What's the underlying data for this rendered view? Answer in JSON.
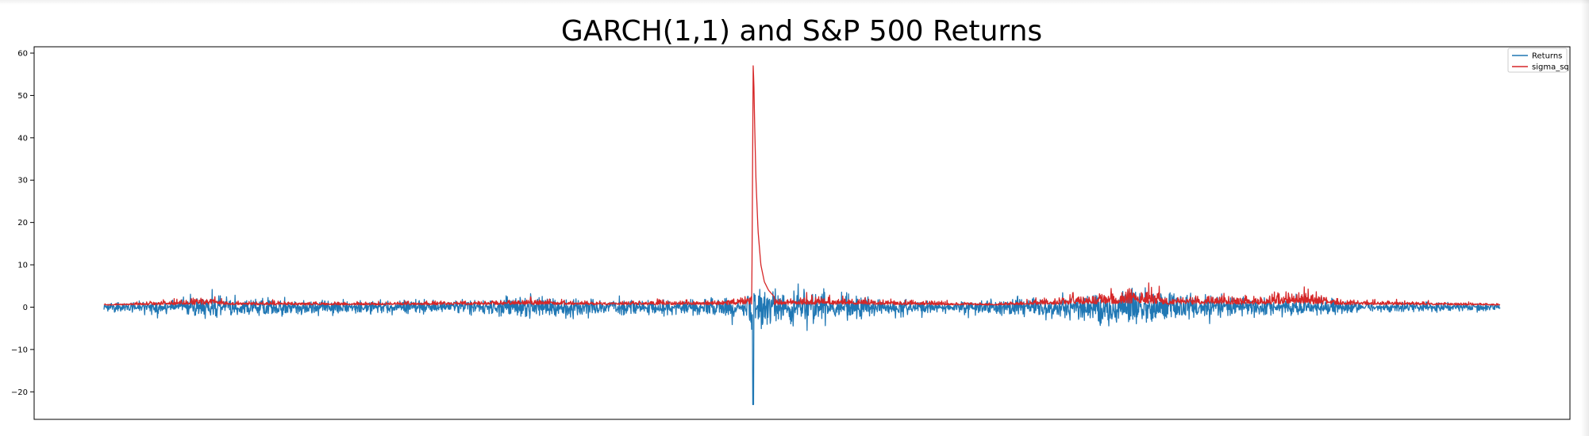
{
  "chart_data": {
    "type": "line",
    "title": "GARCH(1,1) and S&P 500 Returns",
    "xlabel": "",
    "ylabel": "",
    "ylim": [
      -26.5,
      61.5
    ],
    "yticks": [
      -20,
      -10,
      0,
      10,
      20,
      30,
      40,
      50,
      60
    ],
    "ytick_labels": [
      "−20",
      "−10",
      "0",
      "10",
      "20",
      "30",
      "40",
      "50",
      "60"
    ],
    "grid": false,
    "legend_position": "top-right",
    "series": [
      {
        "name": "Returns",
        "color": "#1f77b4",
        "features": [
          [
            0.0,
            0.6
          ],
          [
            0.05,
            2.2
          ],
          [
            0.08,
            3.4
          ],
          [
            0.18,
            1.8
          ],
          [
            0.205,
            2.4
          ],
          [
            0.255,
            1.6
          ],
          [
            0.31,
            4.5
          ],
          [
            0.33,
            2.8
          ],
          [
            0.4,
            1.9
          ],
          [
            0.43,
            3.0
          ],
          [
            0.45,
            4.5
          ],
          [
            0.465,
            -10.0
          ],
          [
            0.468,
            -6.0
          ],
          [
            0.472,
            -8.2
          ],
          [
            0.502,
            -6.5
          ],
          [
            0.555,
            -3.0
          ],
          [
            0.61,
            -1.5
          ],
          [
            0.73,
            -6.5
          ],
          [
            0.755,
            -6.8
          ],
          [
            0.8,
            -3.5
          ],
          [
            0.83,
            -2.5
          ],
          [
            0.86,
            -3.8
          ],
          [
            0.87,
            -2.7
          ],
          [
            0.895,
            -1.5
          ],
          [
            1.0,
            -0.5
          ]
        ],
        "extreme": {
          "x": 0.465,
          "y": -23.0
        }
      },
      {
        "name": "sigma_sq",
        "color": "#d62728",
        "features": [
          [
            0.0,
            0.5
          ],
          [
            0.055,
            3.0
          ],
          [
            0.08,
            5.0
          ],
          [
            0.09,
            2.0
          ],
          [
            0.19,
            1.5
          ],
          [
            0.32,
            3.5
          ],
          [
            0.34,
            2.0
          ],
          [
            0.45,
            3.0
          ],
          [
            0.475,
            7.0
          ],
          [
            0.48,
            3.0
          ],
          [
            0.505,
            4.5
          ],
          [
            0.55,
            3.0
          ],
          [
            0.64,
            1.0
          ],
          [
            0.73,
            8.0
          ],
          [
            0.755,
            7.5
          ],
          [
            0.76,
            4.0
          ],
          [
            0.8,
            5.5
          ],
          [
            0.815,
            4.5
          ],
          [
            0.83,
            4.0
          ],
          [
            0.855,
            7.8
          ],
          [
            0.87,
            6.0
          ],
          [
            0.885,
            3.0
          ],
          [
            1.0,
            0.8
          ]
        ],
        "spike": [
          [
            0.464,
            1.0
          ],
          [
            0.465,
            57.0
          ],
          [
            0.4655,
            53.0
          ],
          [
            0.466,
            44.0
          ],
          [
            0.467,
            30.0
          ],
          [
            0.4685,
            18.0
          ],
          [
            0.4705,
            10.0
          ],
          [
            0.473,
            6.0
          ],
          [
            0.476,
            4.0
          ],
          [
            0.48,
            2.5
          ]
        ]
      }
    ]
  }
}
